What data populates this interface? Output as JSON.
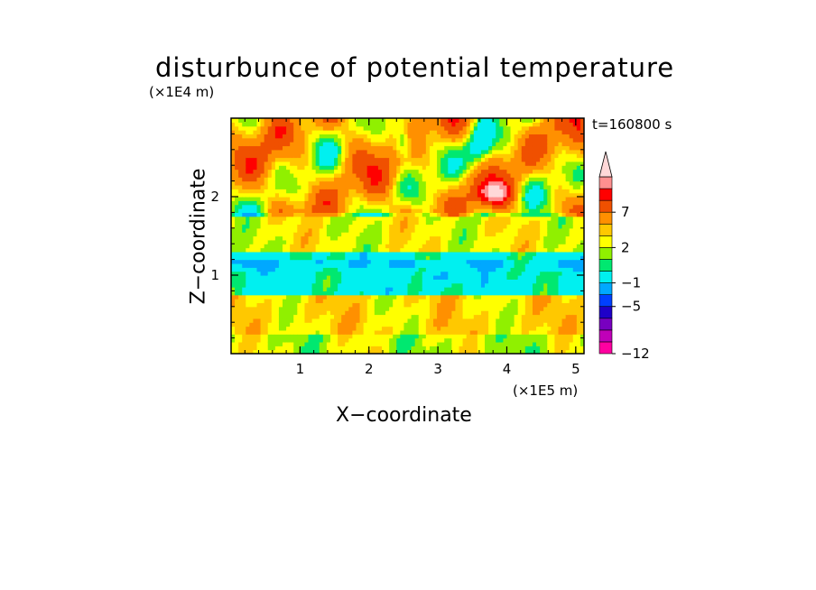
{
  "chart_data": {
    "type": "heatmap",
    "title": "disturbunce of potential temperature",
    "xlabel": "X−coordinate",
    "ylabel": "Z−coordinate",
    "x_unit": "(×1E5 m)",
    "y_unit": "(×1E4 m)",
    "time_label": "t=160800 s",
    "xlim": [
      0,
      5.12
    ],
    "ylim": [
      0,
      3.0
    ],
    "x_ticks": [
      "1",
      "2",
      "3",
      "4",
      "5"
    ],
    "y_ticks": [
      "1",
      "2"
    ],
    "x_tick_values": [
      1,
      2,
      3,
      4,
      5
    ],
    "y_tick_values": [
      1,
      2
    ],
    "colorbar": {
      "levels": [
        -12,
        -10,
        -8,
        -6,
        -5,
        -3,
        -1,
        0,
        1,
        2,
        3,
        5,
        7,
        9,
        11
      ],
      "labels": [
        "−12",
        "−5",
        "−1",
        "2",
        "7"
      ],
      "label_values": [
        -12,
        -5,
        -1,
        2,
        7
      ],
      "colors": [
        "#ff00a0",
        "#c000b8",
        "#7800c0",
        "#1e00c8",
        "#0040ff",
        "#00a8ff",
        "#00f0f0",
        "#00e870",
        "#90f000",
        "#ffff00",
        "#ffc800",
        "#ff9000",
        "#f05000",
        "#ff0000",
        "#ff9090",
        "#ffd8d8"
      ],
      "extend": "both"
    },
    "bands": [
      {
        "z_range": [
          0.0,
          0.25
        ],
        "approx_value": 1.0,
        "note": "green/yellow mix"
      },
      {
        "z_range": [
          0.25,
          0.75
        ],
        "approx_value": 2.0,
        "note": "yellow layer"
      },
      {
        "z_range": [
          0.75,
          1.3
        ],
        "approx_value": -1.5,
        "note": "cyan/blue layer"
      },
      {
        "z_range": [
          1.3,
          1.8
        ],
        "approx_value": 1.5,
        "note": "green layer"
      },
      {
        "z_range": [
          1.8,
          3.0
        ],
        "approx_value": 3.0,
        "note": "orange/yellow with blue streaks"
      }
    ]
  }
}
